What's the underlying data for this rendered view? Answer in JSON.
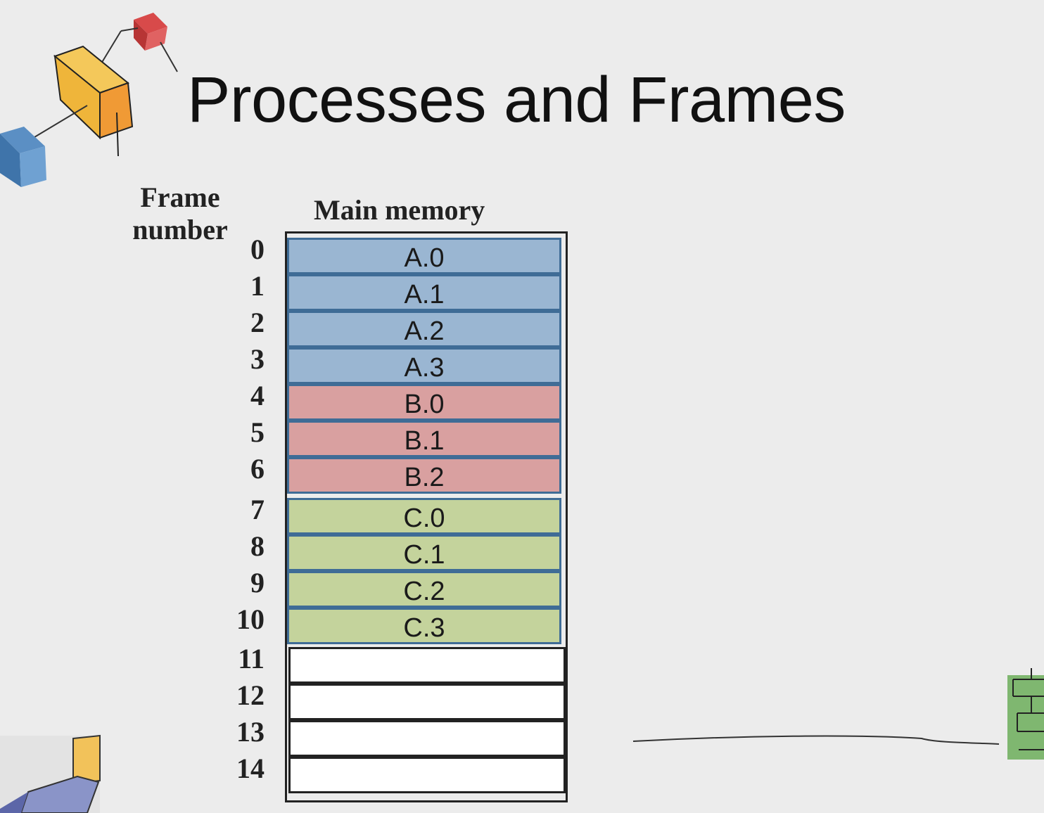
{
  "title": "Processes and Frames",
  "labels": {
    "frame_number_line1": "Frame",
    "frame_number_line2": "number",
    "main_memory": "Main memory"
  },
  "colors": {
    "process_a": "#9ab6d2",
    "process_b": "#d9a0a0",
    "process_c": "#c4d39c",
    "free": "#ffffff",
    "cell_border_filled": "#3f6c96",
    "cell_border_free": "#222222"
  },
  "frames": [
    {
      "number": "0",
      "content": "A.0",
      "process": "A"
    },
    {
      "number": "1",
      "content": "A.1",
      "process": "A"
    },
    {
      "number": "2",
      "content": "A.2",
      "process": "A"
    },
    {
      "number": "3",
      "content": "A.3",
      "process": "A"
    },
    {
      "number": "4",
      "content": "B.0",
      "process": "B"
    },
    {
      "number": "5",
      "content": "B.1",
      "process": "B"
    },
    {
      "number": "6",
      "content": "B.2",
      "process": "B"
    },
    {
      "number": "7",
      "content": "C.0",
      "process": "C"
    },
    {
      "number": "8",
      "content": "C.1",
      "process": "C"
    },
    {
      "number": "9",
      "content": "C.2",
      "process": "C"
    },
    {
      "number": "10",
      "content": "C.3",
      "process": "C"
    },
    {
      "number": "11",
      "content": "",
      "process": "free"
    },
    {
      "number": "12",
      "content": "",
      "process": "free"
    },
    {
      "number": "13",
      "content": "",
      "process": "free"
    },
    {
      "number": "14",
      "content": "",
      "process": "free"
    }
  ]
}
